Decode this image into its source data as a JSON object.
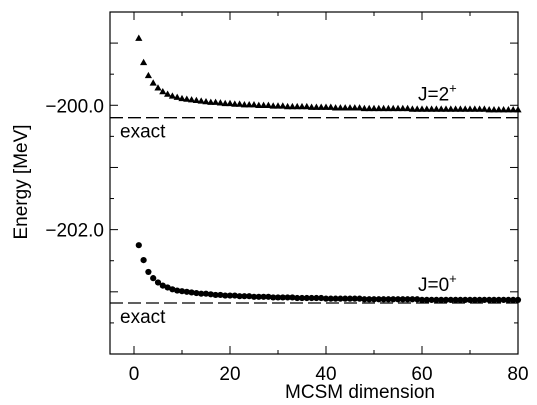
{
  "chart_data": {
    "type": "scatter",
    "title": "",
    "xlabel": "MCSM dimension",
    "ylabel": "Energy [MeV]",
    "xlim": [
      -5,
      80
    ],
    "ylim": [
      -204.0,
      -198.5
    ],
    "grid": false,
    "x_ticks": [
      0,
      20,
      40,
      60,
      80
    ],
    "x_tick_labels": [
      "0",
      "20",
      "40",
      "60",
      "80"
    ],
    "y_ticks": [
      -200.0,
      -202.0
    ],
    "y_tick_labels": [
      "−200.0",
      "−202.0"
    ],
    "series": [
      {
        "name": "J=2+",
        "label_main": "J=2",
        "label_sup": "+",
        "marker": "triangle",
        "exact": -200.2,
        "exact_label": "exact",
        "x": [
          1,
          2,
          3,
          4,
          5,
          6,
          7,
          8,
          9,
          10,
          11,
          12,
          13,
          14,
          15,
          16,
          17,
          18,
          19,
          20,
          21,
          22,
          23,
          24,
          25,
          26,
          27,
          28,
          29,
          30,
          31,
          32,
          33,
          34,
          35,
          36,
          37,
          38,
          39,
          40,
          41,
          42,
          43,
          44,
          45,
          46,
          47,
          48,
          49,
          50,
          51,
          52,
          53,
          54,
          55,
          56,
          57,
          58,
          59,
          60,
          61,
          62,
          63,
          64,
          65,
          66,
          67,
          68,
          69,
          70,
          71,
          72,
          73,
          74,
          75,
          76,
          77,
          78,
          79,
          80
        ],
        "y": [
          -198.92,
          -199.31,
          -199.52,
          -199.64,
          -199.72,
          -199.78,
          -199.82,
          -199.85,
          -199.87,
          -199.89,
          -199.9,
          -199.91,
          -199.92,
          -199.93,
          -199.94,
          -199.95,
          -199.95,
          -199.96,
          -199.97,
          -199.97,
          -199.98,
          -199.98,
          -199.99,
          -199.99,
          -199.99,
          -200.0,
          -200.0,
          -200.0,
          -200.01,
          -200.01,
          -200.01,
          -200.02,
          -200.02,
          -200.02,
          -200.02,
          -200.02,
          -200.03,
          -200.03,
          -200.03,
          -200.03,
          -200.03,
          -200.04,
          -200.04,
          -200.04,
          -200.04,
          -200.04,
          -200.04,
          -200.05,
          -200.05,
          -200.05,
          -200.05,
          -200.05,
          -200.05,
          -200.05,
          -200.05,
          -200.05,
          -200.05,
          -200.06,
          -200.06,
          -200.06,
          -200.06,
          -200.06,
          -200.06,
          -200.06,
          -200.06,
          -200.06,
          -200.06,
          -200.06,
          -200.06,
          -200.06,
          -200.06,
          -200.06,
          -200.06,
          -200.07,
          -200.07,
          -200.07,
          -200.07,
          -200.07,
          -200.07,
          -200.07
        ]
      },
      {
        "name": "J=0+",
        "label_main": "J=0",
        "label_sup": "+",
        "marker": "circle",
        "exact": -203.18,
        "exact_label": "exact",
        "x": [
          1,
          2,
          3,
          4,
          5,
          6,
          7,
          8,
          9,
          10,
          11,
          12,
          13,
          14,
          15,
          16,
          17,
          18,
          19,
          20,
          21,
          22,
          23,
          24,
          25,
          26,
          27,
          28,
          29,
          30,
          31,
          32,
          33,
          34,
          35,
          36,
          37,
          38,
          39,
          40,
          41,
          42,
          43,
          44,
          45,
          46,
          47,
          48,
          49,
          50,
          51,
          52,
          53,
          54,
          55,
          56,
          57,
          58,
          59,
          60,
          61,
          62,
          63,
          64,
          65,
          66,
          67,
          68,
          69,
          70,
          71,
          72,
          73,
          74,
          75,
          76,
          77,
          78,
          79,
          80
        ],
        "y": [
          -202.25,
          -202.49,
          -202.68,
          -202.78,
          -202.85,
          -202.9,
          -202.93,
          -202.96,
          -202.98,
          -202.99,
          -203.0,
          -203.01,
          -203.02,
          -203.03,
          -203.03,
          -203.04,
          -203.05,
          -203.05,
          -203.06,
          -203.06,
          -203.06,
          -203.07,
          -203.07,
          -203.07,
          -203.08,
          -203.08,
          -203.08,
          -203.08,
          -203.09,
          -203.09,
          -203.09,
          -203.09,
          -203.09,
          -203.1,
          -203.1,
          -203.1,
          -203.1,
          -203.1,
          -203.1,
          -203.11,
          -203.11,
          -203.11,
          -203.11,
          -203.11,
          -203.11,
          -203.11,
          -203.11,
          -203.12,
          -203.12,
          -203.12,
          -203.12,
          -203.12,
          -203.12,
          -203.12,
          -203.12,
          -203.12,
          -203.12,
          -203.12,
          -203.12,
          -203.13,
          -203.13,
          -203.13,
          -203.13,
          -203.13,
          -203.13,
          -203.13,
          -203.13,
          -203.13,
          -203.13,
          -203.13,
          -203.13,
          -203.13,
          -203.13,
          -203.13,
          -203.13,
          -203.13,
          -203.13,
          -203.13,
          -203.13,
          -203.13
        ]
      }
    ]
  }
}
